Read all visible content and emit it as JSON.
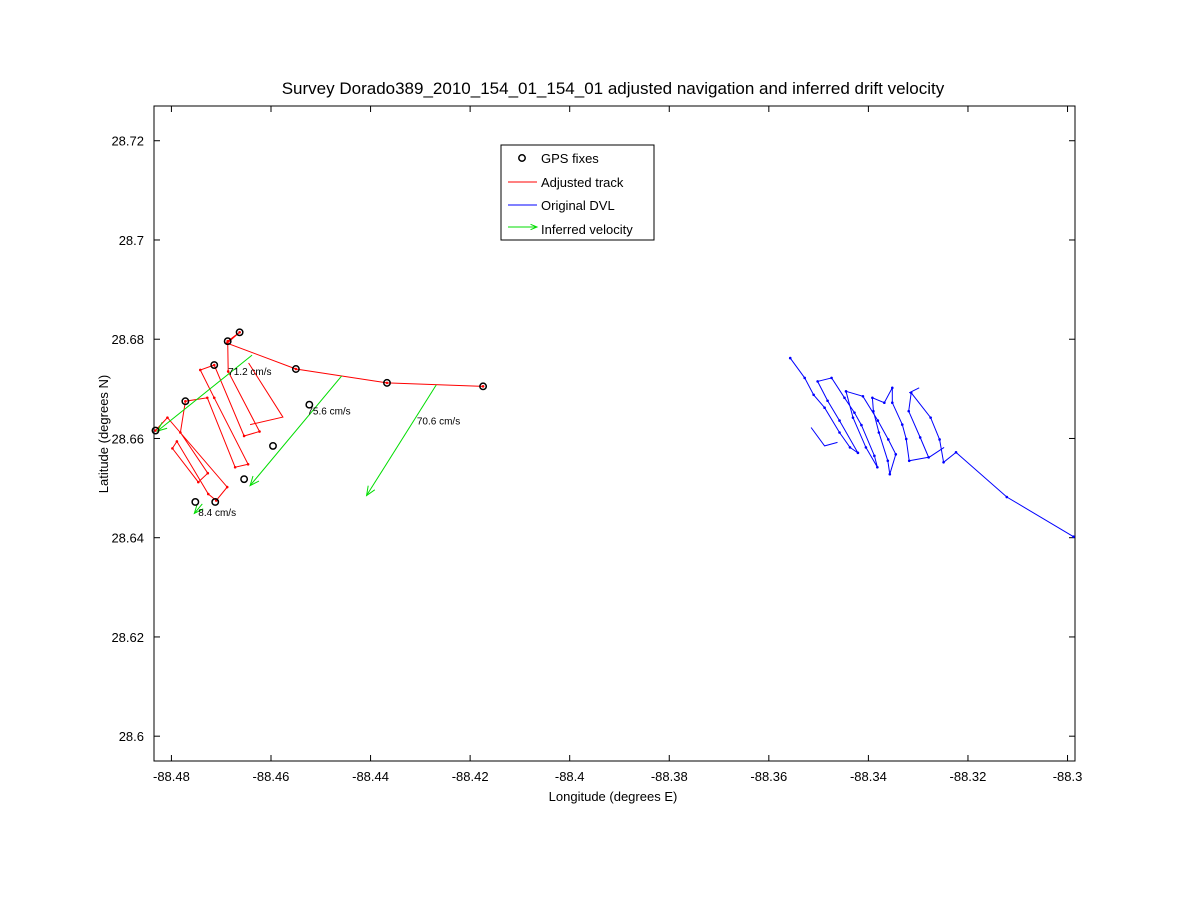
{
  "chart_data": {
    "type": "line",
    "title": "Survey Dorado389_2010_154_01_154_01 adjusted navigation and inferred drift velocity",
    "xlabel": "Longitude (degrees E)",
    "ylabel": "Latitude (degrees N)",
    "xlim": [
      -88.4835,
      -88.2985
    ],
    "ylim": [
      28.595,
      28.727
    ],
    "x_ticks": [
      -88.48,
      -88.46,
      -88.44,
      -88.42,
      -88.4,
      -88.38,
      -88.36,
      -88.34,
      -88.32,
      -88.3
    ],
    "x_tick_labels": [
      "-88.48",
      "-88.46",
      "-88.44",
      "-88.42",
      "-88.4",
      "-88.38",
      "-88.36",
      "-88.34",
      "-88.32",
      "-88.3"
    ],
    "y_ticks": [
      28.6,
      28.62,
      28.64,
      28.66,
      28.68,
      28.7,
      28.72
    ],
    "y_tick_labels": [
      "28.6",
      "28.62",
      "28.64",
      "28.66",
      "28.68",
      "28.7",
      "28.72"
    ],
    "grid": false,
    "legend_position": "top-center",
    "colors": {
      "gps": "#000000",
      "adjusted": "#ff0000",
      "original": "#0000ff",
      "velocity": "#00dd00"
    },
    "legend": [
      {
        "key": "gps",
        "label": "GPS fixes",
        "kind": "marker"
      },
      {
        "key": "adjusted",
        "label": "Adjusted track",
        "kind": "line"
      },
      {
        "key": "original",
        "label": "Original DVL",
        "kind": "line"
      },
      {
        "key": "velocity",
        "label": "Inferred velocity",
        "kind": "arrow"
      }
    ],
    "gps_fixes": [
      [
        -88.4832,
        28.6616
      ],
      [
        -88.4772,
        28.6675
      ],
      [
        -88.4714,
        28.6748
      ],
      [
        -88.4687,
        28.6796
      ],
      [
        -88.4663,
        28.6814
      ],
      [
        -88.455,
        28.674
      ],
      [
        -88.4523,
        28.6668
      ],
      [
        -88.4367,
        28.6712
      ],
      [
        -88.4174,
        28.6705
      ],
      [
        -88.4596,
        28.6585
      ],
      [
        -88.4654,
        28.6518
      ],
      [
        -88.4752,
        28.6472
      ],
      [
        -88.4712,
        28.6472
      ]
    ],
    "adjusted_track": [
      [
        -88.4832,
        28.6616
      ],
      [
        -88.4808,
        28.6642
      ],
      [
        -88.4688,
        28.6502
      ],
      [
        -88.471,
        28.6475
      ],
      [
        -88.4726,
        28.6488
      ],
      [
        -88.4789,
        28.6594
      ],
      [
        -88.4798,
        28.658
      ],
      [
        -88.4746,
        28.6512
      ],
      [
        -88.4727,
        28.653
      ],
      [
        -88.4782,
        28.6612
      ],
      [
        -88.4772,
        28.6675
      ],
      [
        -88.4728,
        28.6682
      ],
      [
        -88.4672,
        28.6542
      ],
      [
        -88.4646,
        28.6548
      ],
      [
        -88.4714,
        28.6682
      ],
      [
        -88.4742,
        28.6738
      ],
      [
        -88.4714,
        28.6748
      ],
      [
        -88.4654,
        28.6605
      ],
      [
        -88.4623,
        28.6614
      ],
      [
        -88.4686,
        28.6735
      ],
      [
        -88.4687,
        28.6796
      ],
      [
        -88.4663,
        28.6814
      ],
      [
        -88.4688,
        28.6792
      ],
      [
        -88.455,
        28.674
      ],
      [
        -88.4367,
        28.6712
      ],
      [
        -88.4174,
        28.6705
      ]
    ],
    "adjusted_spur": [
      [
        -88.4645,
        28.6752
      ],
      [
        -88.4576,
        28.6643
      ],
      [
        -88.4642,
        28.6628
      ]
    ],
    "original_dvl": [
      [
        -88.3557,
        28.6762
      ],
      [
        -88.3528,
        28.6722
      ],
      [
        -88.351,
        28.6688
      ],
      [
        -88.3488,
        28.6662
      ],
      [
        -88.3458,
        28.6612
      ],
      [
        -88.3437,
        28.6582
      ],
      [
        -88.3421,
        28.6571
      ],
      [
        -88.3458,
        28.6636
      ],
      [
        -88.3482,
        28.6676
      ],
      [
        -88.3502,
        28.6715
      ],
      [
        -88.3474,
        28.6722
      ],
      [
        -88.3448,
        28.6682
      ],
      [
        -88.3428,
        28.6652
      ],
      [
        -88.3414,
        28.6627
      ],
      [
        -88.3388,
        28.6565
      ],
      [
        -88.3382,
        28.6542
      ],
      [
        -88.3405,
        28.6582
      ],
      [
        -88.3431,
        28.6642
      ],
      [
        -88.3445,
        28.6695
      ],
      [
        -88.3411,
        28.6685
      ],
      [
        -88.3381,
        28.6636
      ],
      [
        -88.336,
        28.6598
      ],
      [
        -88.3345,
        28.6568
      ],
      [
        -88.3357,
        28.6528
      ],
      [
        -88.3361,
        28.6555
      ],
      [
        -88.3379,
        28.6612
      ],
      [
        -88.339,
        28.6655
      ],
      [
        -88.3392,
        28.6682
      ],
      [
        -88.3368,
        28.6672
      ],
      [
        -88.3352,
        28.6702
      ],
      [
        -88.3352,
        28.6672
      ],
      [
        -88.3332,
        28.6628
      ],
      [
        -88.3324,
        28.6599
      ],
      [
        -88.3318,
        28.6555
      ],
      [
        -88.3279,
        28.6562
      ],
      [
        -88.3296,
        28.6602
      ],
      [
        -88.3319,
        28.6655
      ],
      [
        -88.3314,
        28.6692
      ],
      [
        -88.3275,
        28.6642
      ],
      [
        -88.3257,
        28.6598
      ],
      [
        -88.3249,
        28.6552
      ],
      [
        -88.3224,
        28.6572
      ],
      [
        -88.3122,
        28.6482
      ],
      [
        -88.2988,
        28.6402
      ]
    ],
    "original_spurs": [
      [
        [
          -88.3515,
          28.6622
        ],
        [
          -88.3488,
          28.6585
        ],
        [
          -88.3462,
          28.6592
        ]
      ],
      [
        [
          -88.3318,
          28.6692
        ],
        [
          -88.3298,
          28.6702
        ]
      ],
      [
        [
          -88.3278,
          28.6562
        ],
        [
          -88.3248,
          28.6582
        ]
      ]
    ],
    "velocity_arrows": [
      {
        "start": [
          -88.4638,
          28.6768
        ],
        "end": [
          -88.4828,
          28.6615
        ],
        "label": "71.2 cm/s",
        "label_at": [
          -88.4686,
          28.6728
        ]
      },
      {
        "start": [
          -88.4458,
          28.6726
        ],
        "end": [
          -88.4642,
          28.6505
        ],
        "label": "75.6 cm/s",
        "label_at": [
          -88.4527,
          28.6648
        ]
      },
      {
        "start": [
          -88.4268,
          28.6708
        ],
        "end": [
          -88.4408,
          28.6485
        ],
        "label": "70.6 cm/s",
        "label_at": [
          -88.4307,
          28.6628
        ]
      },
      {
        "start": [
          -88.4738,
          28.6468
        ],
        "end": [
          -88.4754,
          28.6449
        ],
        "label": "8.4 cm/s",
        "label_at": [
          -88.4746,
          28.6444
        ]
      }
    ]
  }
}
